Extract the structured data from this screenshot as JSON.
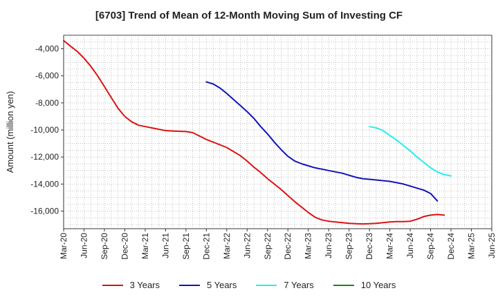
{
  "chart_data": {
    "type": "line",
    "title": "[6703]  Trend of Mean of 12-Month Moving Sum of Investing CF",
    "xlabel": "",
    "ylabel": "Amount (million yen)",
    "ylim": [
      -17300,
      -3000
    ],
    "yticks": [
      -4000,
      -6000,
      -8000,
      -10000,
      -12000,
      -14000,
      -16000
    ],
    "ytick_labels": [
      "-4,000",
      "-6,000",
      "-8,000",
      "-10,000",
      "-12,000",
      "-14,000",
      "-16,000"
    ],
    "x_range": [
      0,
      63
    ],
    "xticks": [
      0,
      3,
      6,
      9,
      12,
      15,
      18,
      21,
      24,
      27,
      30,
      33,
      36,
      39,
      42,
      45,
      48,
      51,
      54,
      57,
      60,
      63
    ],
    "xtick_labels": [
      "Mar-20",
      "Jun-20",
      "Sep-20",
      "Dec-20",
      "Mar-21",
      "Jun-21",
      "Sep-21",
      "Dec-21",
      "Mar-22",
      "Jun-22",
      "Sep-22",
      "Dec-22",
      "Mar-23",
      "Jun-23",
      "Sep-23",
      "Dec-23",
      "Mar-24",
      "Jun-24",
      "Sep-24",
      "Dec-24",
      "Mar-25",
      "Jun-25"
    ],
    "grid": true,
    "legend_position": "bottom",
    "series": [
      {
        "name": "3 Years",
        "color": "#dd1111",
        "start": 0,
        "values": [
          -3400,
          -3800,
          -4200,
          -4700,
          -5300,
          -6000,
          -6800,
          -7600,
          -8400,
          -9000,
          -9400,
          -9650,
          -9750,
          -9850,
          -9950,
          -10050,
          -10080,
          -10100,
          -10120,
          -10200,
          -10450,
          -10700,
          -10900,
          -11100,
          -11300,
          -11600,
          -11900,
          -12300,
          -12750,
          -13150,
          -13600,
          -14000,
          -14400,
          -14850,
          -15300,
          -15700,
          -16100,
          -16450,
          -16650,
          -16750,
          -16800,
          -16850,
          -16900,
          -16930,
          -16950,
          -16930,
          -16900,
          -16850,
          -16800,
          -16780,
          -16780,
          -16750,
          -16600,
          -16400,
          -16300,
          -16250,
          -16300
        ]
      },
      {
        "name": "5 Years",
        "color": "#1111bb",
        "start": 21,
        "values": [
          -6450,
          -6600,
          -6900,
          -7300,
          -7750,
          -8200,
          -8650,
          -9150,
          -9750,
          -10300,
          -10900,
          -11450,
          -11950,
          -12300,
          -12500,
          -12650,
          -12800,
          -12900,
          -13000,
          -13100,
          -13200,
          -13350,
          -13500,
          -13600,
          -13650,
          -13700,
          -13750,
          -13800,
          -13900,
          -14000,
          -14150,
          -14300,
          -14450,
          -14700,
          -15250
        ]
      },
      {
        "name": "7 Years",
        "color": "#22eeee",
        "start": 45,
        "values": [
          -9750,
          -9850,
          -10050,
          -10400,
          -10750,
          -11150,
          -11550,
          -12000,
          -12400,
          -12800,
          -13100,
          -13300,
          -13400
        ]
      },
      {
        "name": "10 Years",
        "color": "#118811",
        "start": 0,
        "values": []
      }
    ]
  }
}
